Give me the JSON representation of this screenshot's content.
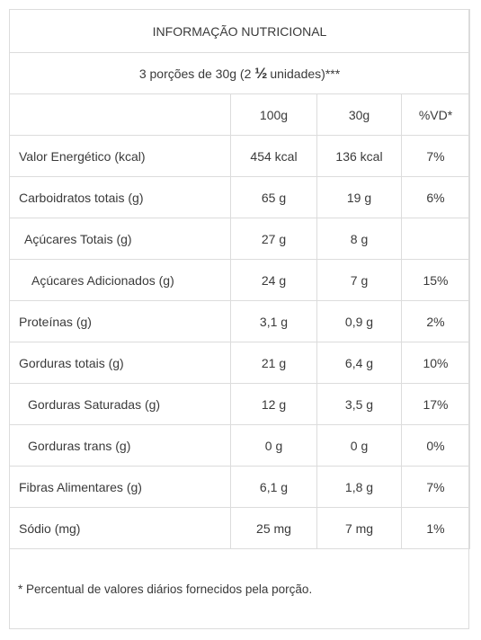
{
  "table": {
    "title": "INFORMAÇÃO NUTRICIONAL",
    "portion": {
      "prefix": "3 porções de 30g (2 ",
      "fraction": "½",
      "suffix": " unidades)***"
    },
    "headers": [
      "",
      "100g",
      "30g",
      "%VD*"
    ],
    "rows": [
      {
        "label": "Valor Energético (kcal)",
        "v100": "454 kcal",
        "v30": "136 kcal",
        "vd": "7%"
      },
      {
        "label": "Carboidratos totais (g)",
        "v100": "65 g",
        "v30": "19 g",
        "vd": "6%"
      },
      {
        "label": "Açúcares Totais (g)",
        "v100": "27 g",
        "v30": "8 g",
        "vd": ""
      },
      {
        "label": "Açúcares Adicionados (g)",
        "v100": "24 g",
        "v30": "7 g",
        "vd": "15%"
      },
      {
        "label": "Proteínas (g)",
        "v100": "3,1 g",
        "v30": "0,9 g",
        "vd": "2%"
      },
      {
        "label": "Gorduras totais (g)",
        "v100": "21 g",
        "v30": "6,4 g",
        "vd": "10%"
      },
      {
        "label": "Gorduras Saturadas (g)",
        "v100": "12 g",
        "v30": "3,5 g",
        "vd": "17%"
      },
      {
        "label": "Gorduras trans (g)",
        "v100": "0 g",
        "v30": "0 g",
        "vd": "0%"
      },
      {
        "label": "Fibras Alimentares (g)",
        "v100": "6,1 g",
        "v30": "1,8 g",
        "vd": "7%"
      },
      {
        "label": "Sódio (mg)",
        "v100": "25 mg",
        "v30": "7 mg",
        "vd": "1%"
      }
    ]
  },
  "footnote": "* Percentual de valores diários fornecidos pela porção."
}
